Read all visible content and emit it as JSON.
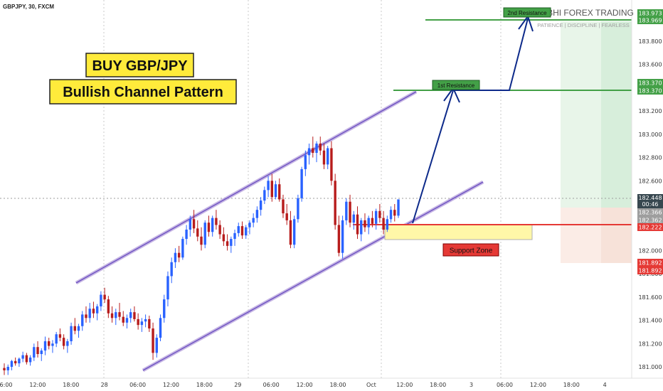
{
  "header": {
    "symbol_line": "GBPJPY, 30, FXCM"
  },
  "title_box": {
    "line1": "BUY GBP/JPY",
    "line2": "Bullish Channel Pattern"
  },
  "brand": {
    "name": "ABHI FOREX TRADING",
    "tagline": "PATIENCE  |  DISCIPLINE  |  FEARLESS"
  },
  "annotations": {
    "resistance1": "1st Resistance",
    "resistance2": "2nd Resistance",
    "support_zone": "Support Zone"
  },
  "price_axis": {
    "ticks": [
      "183.800",
      "183.600",
      "183.400",
      "183.200",
      "183.000",
      "182.800",
      "182.600",
      "182.400",
      "182.200",
      "182.000",
      "181.800",
      "181.600",
      "181.400",
      "181.200",
      "181.000"
    ],
    "tags": {
      "r2_a": "183.973",
      "r2_b": "183.969",
      "r1_a": "183.370",
      "r1_b": "183.370",
      "last": "182.448",
      "countdown": "00:46",
      "p1": "182.366",
      "p2": "182.362",
      "sup": "182.222",
      "stop_a": "181.892",
      "stop_b": "181.892"
    }
  },
  "time_axis": {
    "labels": [
      "06:00",
      "12:00",
      "18:00",
      "28",
      "06:00",
      "12:00",
      "18:00",
      "29",
      "06:00",
      "12:00",
      "18:00",
      "Oct",
      "12:00",
      "18:00",
      "3",
      "06:00",
      "12:00",
      "18:00",
      "4"
    ]
  },
  "colors": {
    "bull": "#2962ff",
    "bear": "#b71c1c",
    "channel": "#7b5cc4",
    "resistance": "#43a047",
    "support": "#e53935",
    "arrow": "#0d2a8a",
    "title_bg": "#ffeb3b",
    "support_zone": "#fff59d"
  },
  "chart_data": {
    "type": "candlestick",
    "title": "GBPJPY, 30, FXCM",
    "ylim": [
      180.93,
      184.07
    ],
    "resistance_levels": [
      183.971,
      183.37
    ],
    "support_level": 182.222,
    "last_price": 182.448,
    "candles_ohlc": [
      [
        180.99,
        181.03,
        180.93,
        180.97
      ],
      [
        180.97,
        181.02,
        180.93,
        181.0
      ],
      [
        181.0,
        181.06,
        180.97,
        181.05
      ],
      [
        181.05,
        181.08,
        181.01,
        181.03
      ],
      [
        181.03,
        181.08,
        181.0,
        181.07
      ],
      [
        181.07,
        181.13,
        181.04,
        181.1
      ],
      [
        181.1,
        181.12,
        181.02,
        181.04
      ],
      [
        181.04,
        181.1,
        181.01,
        181.08
      ],
      [
        181.08,
        181.2,
        181.05,
        181.17
      ],
      [
        181.17,
        181.22,
        181.08,
        181.11
      ],
      [
        181.11,
        181.16,
        181.05,
        181.14
      ],
      [
        181.14,
        181.26,
        181.1,
        181.22
      ],
      [
        181.22,
        181.25,
        181.15,
        181.18
      ],
      [
        181.18,
        181.23,
        181.12,
        181.2
      ],
      [
        181.2,
        181.3,
        181.17,
        181.28
      ],
      [
        181.28,
        181.33,
        181.22,
        181.25
      ],
      [
        181.25,
        181.28,
        181.15,
        181.18
      ],
      [
        181.18,
        181.24,
        181.12,
        181.22
      ],
      [
        181.22,
        181.38,
        181.19,
        181.35
      ],
      [
        181.35,
        181.42,
        181.28,
        181.31
      ],
      [
        181.31,
        181.37,
        181.25,
        181.35
      ],
      [
        181.35,
        181.48,
        181.31,
        181.45
      ],
      [
        181.45,
        181.52,
        181.38,
        181.42
      ],
      [
        181.42,
        181.55,
        181.38,
        181.5
      ],
      [
        181.5,
        181.56,
        181.42,
        181.46
      ],
      [
        181.46,
        181.54,
        181.4,
        181.52
      ],
      [
        181.52,
        181.65,
        181.48,
        181.62
      ],
      [
        181.62,
        181.68,
        181.55,
        181.58
      ],
      [
        181.58,
        181.61,
        181.42,
        181.46
      ],
      [
        181.46,
        181.52,
        181.38,
        181.42
      ],
      [
        181.42,
        181.5,
        181.36,
        181.47
      ],
      [
        181.47,
        181.55,
        181.4,
        181.43
      ],
      [
        181.43,
        181.48,
        181.35,
        181.38
      ],
      [
        181.38,
        181.45,
        181.33,
        181.42
      ],
      [
        181.42,
        181.5,
        181.38,
        181.47
      ],
      [
        181.47,
        181.52,
        181.39,
        181.41
      ],
      [
        181.41,
        181.46,
        181.32,
        181.36
      ],
      [
        181.36,
        181.42,
        181.3,
        181.39
      ],
      [
        181.39,
        181.45,
        181.34,
        181.41
      ],
      [
        181.41,
        181.44,
        181.3,
        181.33
      ],
      [
        181.33,
        181.38,
        181.06,
        181.12
      ],
      [
        181.12,
        181.28,
        181.08,
        181.25
      ],
      [
        181.25,
        181.45,
        181.22,
        181.42
      ],
      [
        181.42,
        181.62,
        181.38,
        181.58
      ],
      [
        181.58,
        181.82,
        181.52,
        181.78
      ],
      [
        181.78,
        181.94,
        181.72,
        181.9
      ],
      [
        181.9,
        182.02,
        181.85,
        181.98
      ],
      [
        181.98,
        182.04,
        181.9,
        181.94
      ],
      [
        181.94,
        182.12,
        181.92,
        182.1
      ],
      [
        182.1,
        182.22,
        182.05,
        182.18
      ],
      [
        182.18,
        182.3,
        182.12,
        182.27
      ],
      [
        182.27,
        182.35,
        182.15,
        182.19
      ],
      [
        182.19,
        182.26,
        182.08,
        182.12
      ],
      [
        182.12,
        182.2,
        182.0,
        182.05
      ],
      [
        182.05,
        182.26,
        182.02,
        182.24
      ],
      [
        182.24,
        182.3,
        182.12,
        182.16
      ],
      [
        182.16,
        182.3,
        182.12,
        182.28
      ],
      [
        182.28,
        182.35,
        182.18,
        182.22
      ],
      [
        182.22,
        182.26,
        182.1,
        182.14
      ],
      [
        182.14,
        182.2,
        182.04,
        182.08
      ],
      [
        182.08,
        182.14,
        182.0,
        182.04
      ],
      [
        182.04,
        182.12,
        181.98,
        182.1
      ],
      [
        182.1,
        182.18,
        182.04,
        182.15
      ],
      [
        182.15,
        182.24,
        182.12,
        182.21
      ],
      [
        182.21,
        182.25,
        182.1,
        182.13
      ],
      [
        182.13,
        182.22,
        182.1,
        182.2
      ],
      [
        182.2,
        182.26,
        182.14,
        182.24
      ],
      [
        182.24,
        182.32,
        182.2,
        182.28
      ],
      [
        182.28,
        182.38,
        182.24,
        182.35
      ],
      [
        182.35,
        182.46,
        182.3,
        182.43
      ],
      [
        182.43,
        182.55,
        182.4,
        182.52
      ],
      [
        182.52,
        182.64,
        182.46,
        182.6
      ],
      [
        182.6,
        182.66,
        182.42,
        182.46
      ],
      [
        182.46,
        182.6,
        182.44,
        182.57
      ],
      [
        182.57,
        182.62,
        182.42,
        182.44
      ],
      [
        182.44,
        182.48,
        182.28,
        182.32
      ],
      [
        182.32,
        182.4,
        182.22,
        182.26
      ],
      [
        182.26,
        182.34,
        182.02,
        182.05
      ],
      [
        182.05,
        182.3,
        182.02,
        182.27
      ],
      [
        182.27,
        182.48,
        182.24,
        182.45
      ],
      [
        182.45,
        182.72,
        182.42,
        182.7
      ],
      [
        182.7,
        182.86,
        182.64,
        182.82
      ],
      [
        182.82,
        182.92,
        182.74,
        182.88
      ],
      [
        182.88,
        182.98,
        182.8,
        182.84
      ],
      [
        182.84,
        182.94,
        182.76,
        182.92
      ],
      [
        182.92,
        182.98,
        182.82,
        182.86
      ],
      [
        182.86,
        182.92,
        182.7,
        182.74
      ],
      [
        182.74,
        182.9,
        182.7,
        182.88
      ],
      [
        182.88,
        182.94,
        182.56,
        182.6
      ],
      [
        182.6,
        182.66,
        182.18,
        182.22
      ],
      [
        182.22,
        182.3,
        181.95,
        181.98
      ],
      [
        181.98,
        182.3,
        181.93,
        182.26
      ],
      [
        182.26,
        182.45,
        182.22,
        182.42
      ],
      [
        182.42,
        182.48,
        182.2,
        182.24
      ],
      [
        182.24,
        182.34,
        182.18,
        182.31
      ],
      [
        182.31,
        182.38,
        182.1,
        182.14
      ],
      [
        182.14,
        182.28,
        182.08,
        182.26
      ],
      [
        182.26,
        182.32,
        182.16,
        182.2
      ],
      [
        182.2,
        182.3,
        182.14,
        182.28
      ],
      [
        182.28,
        182.34,
        182.2,
        182.23
      ],
      [
        182.23,
        182.36,
        182.18,
        182.34
      ],
      [
        182.34,
        182.4,
        182.24,
        182.28
      ],
      [
        182.28,
        182.34,
        182.14,
        182.18
      ],
      [
        182.18,
        182.3,
        182.16,
        182.27
      ],
      [
        182.27,
        182.38,
        182.24,
        182.35
      ],
      [
        182.35,
        182.4,
        182.25,
        182.3
      ],
      [
        182.3,
        182.44,
        182.28,
        182.44
      ]
    ]
  }
}
